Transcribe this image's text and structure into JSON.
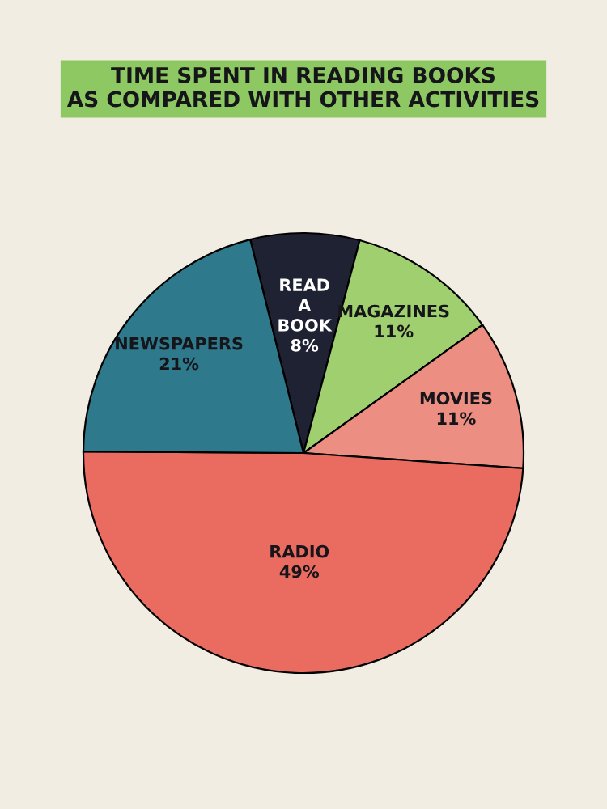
{
  "chart_data": {
    "type": "pie",
    "title": "TIME SPENT IN READING BOOKS\nAS COMPARED WITH OTHER ACTIVITIES",
    "categories": [
      "READ A BOOK",
      "MAGAZINES",
      "MOVIES",
      "RADIO",
      "NEWSPAPERS"
    ],
    "values": [
      8,
      11,
      11,
      49,
      21
    ],
    "value_labels": [
      "8%",
      "11%",
      "11%",
      "49%",
      "21%"
    ],
    "colors": [
      "#1f2233",
      "#9fcf6f",
      "#ec8f82",
      "#ea6b60",
      "#2e7a8c"
    ]
  }
}
